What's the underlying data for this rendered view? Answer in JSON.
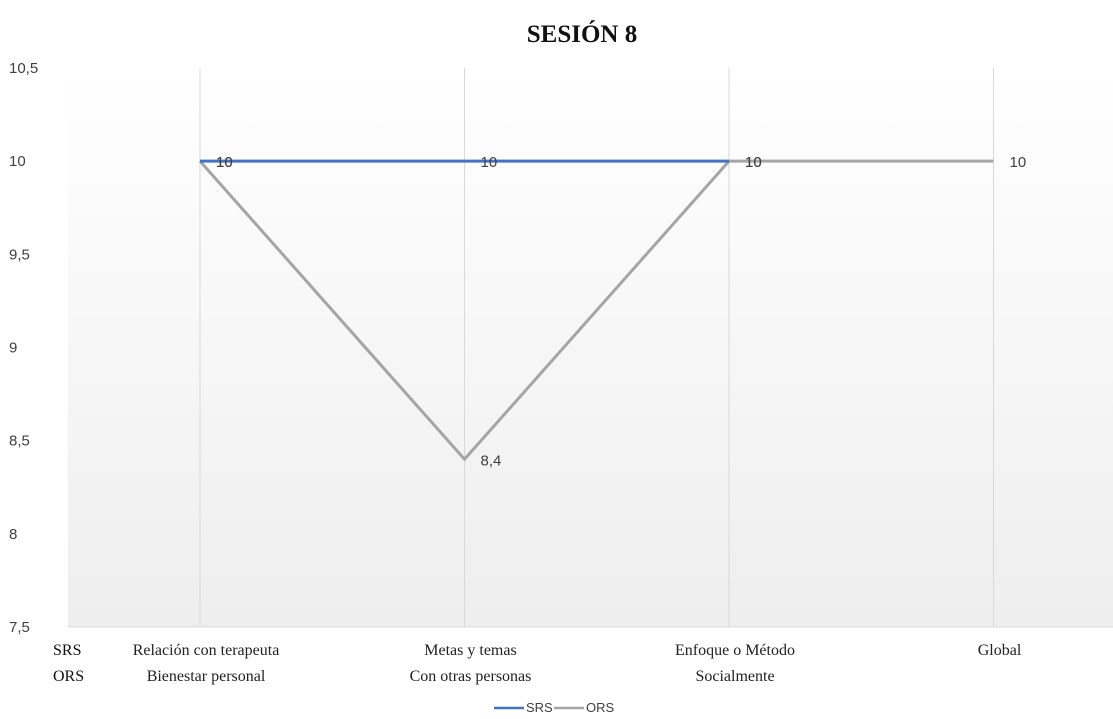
{
  "chart_data": {
    "type": "line",
    "title": "SESIÓN 8",
    "ylim": [
      7.5,
      10.5
    ],
    "yticks": [
      "7,5",
      "8",
      "8,5",
      "9",
      "9,5",
      "10",
      "10,5"
    ],
    "ytick_values": [
      7.5,
      8,
      8.5,
      9,
      9.5,
      10,
      10.5
    ],
    "category_rows": [
      {
        "label": "SRS",
        "categories": [
          "Relación con terapeuta",
          "Metas y temas",
          "Enfoque o Método",
          "Global"
        ]
      },
      {
        "label": "ORS",
        "categories": [
          "Bienestar personal",
          "Con otras personas",
          "Socialmente",
          ""
        ]
      }
    ],
    "series": [
      {
        "name": "SRS",
        "color": "#4472C4",
        "values": [
          10,
          10,
          10,
          null
        ],
        "labels": [
          "10",
          "10",
          "10",
          ""
        ]
      },
      {
        "name": "ORS",
        "color": "#A5A5A5",
        "values": [
          10,
          8.4,
          10,
          10
        ],
        "labels": [
          "10",
          "8,4",
          "10",
          "10"
        ]
      }
    ],
    "grid": "vertical",
    "legend_position": "bottom"
  }
}
